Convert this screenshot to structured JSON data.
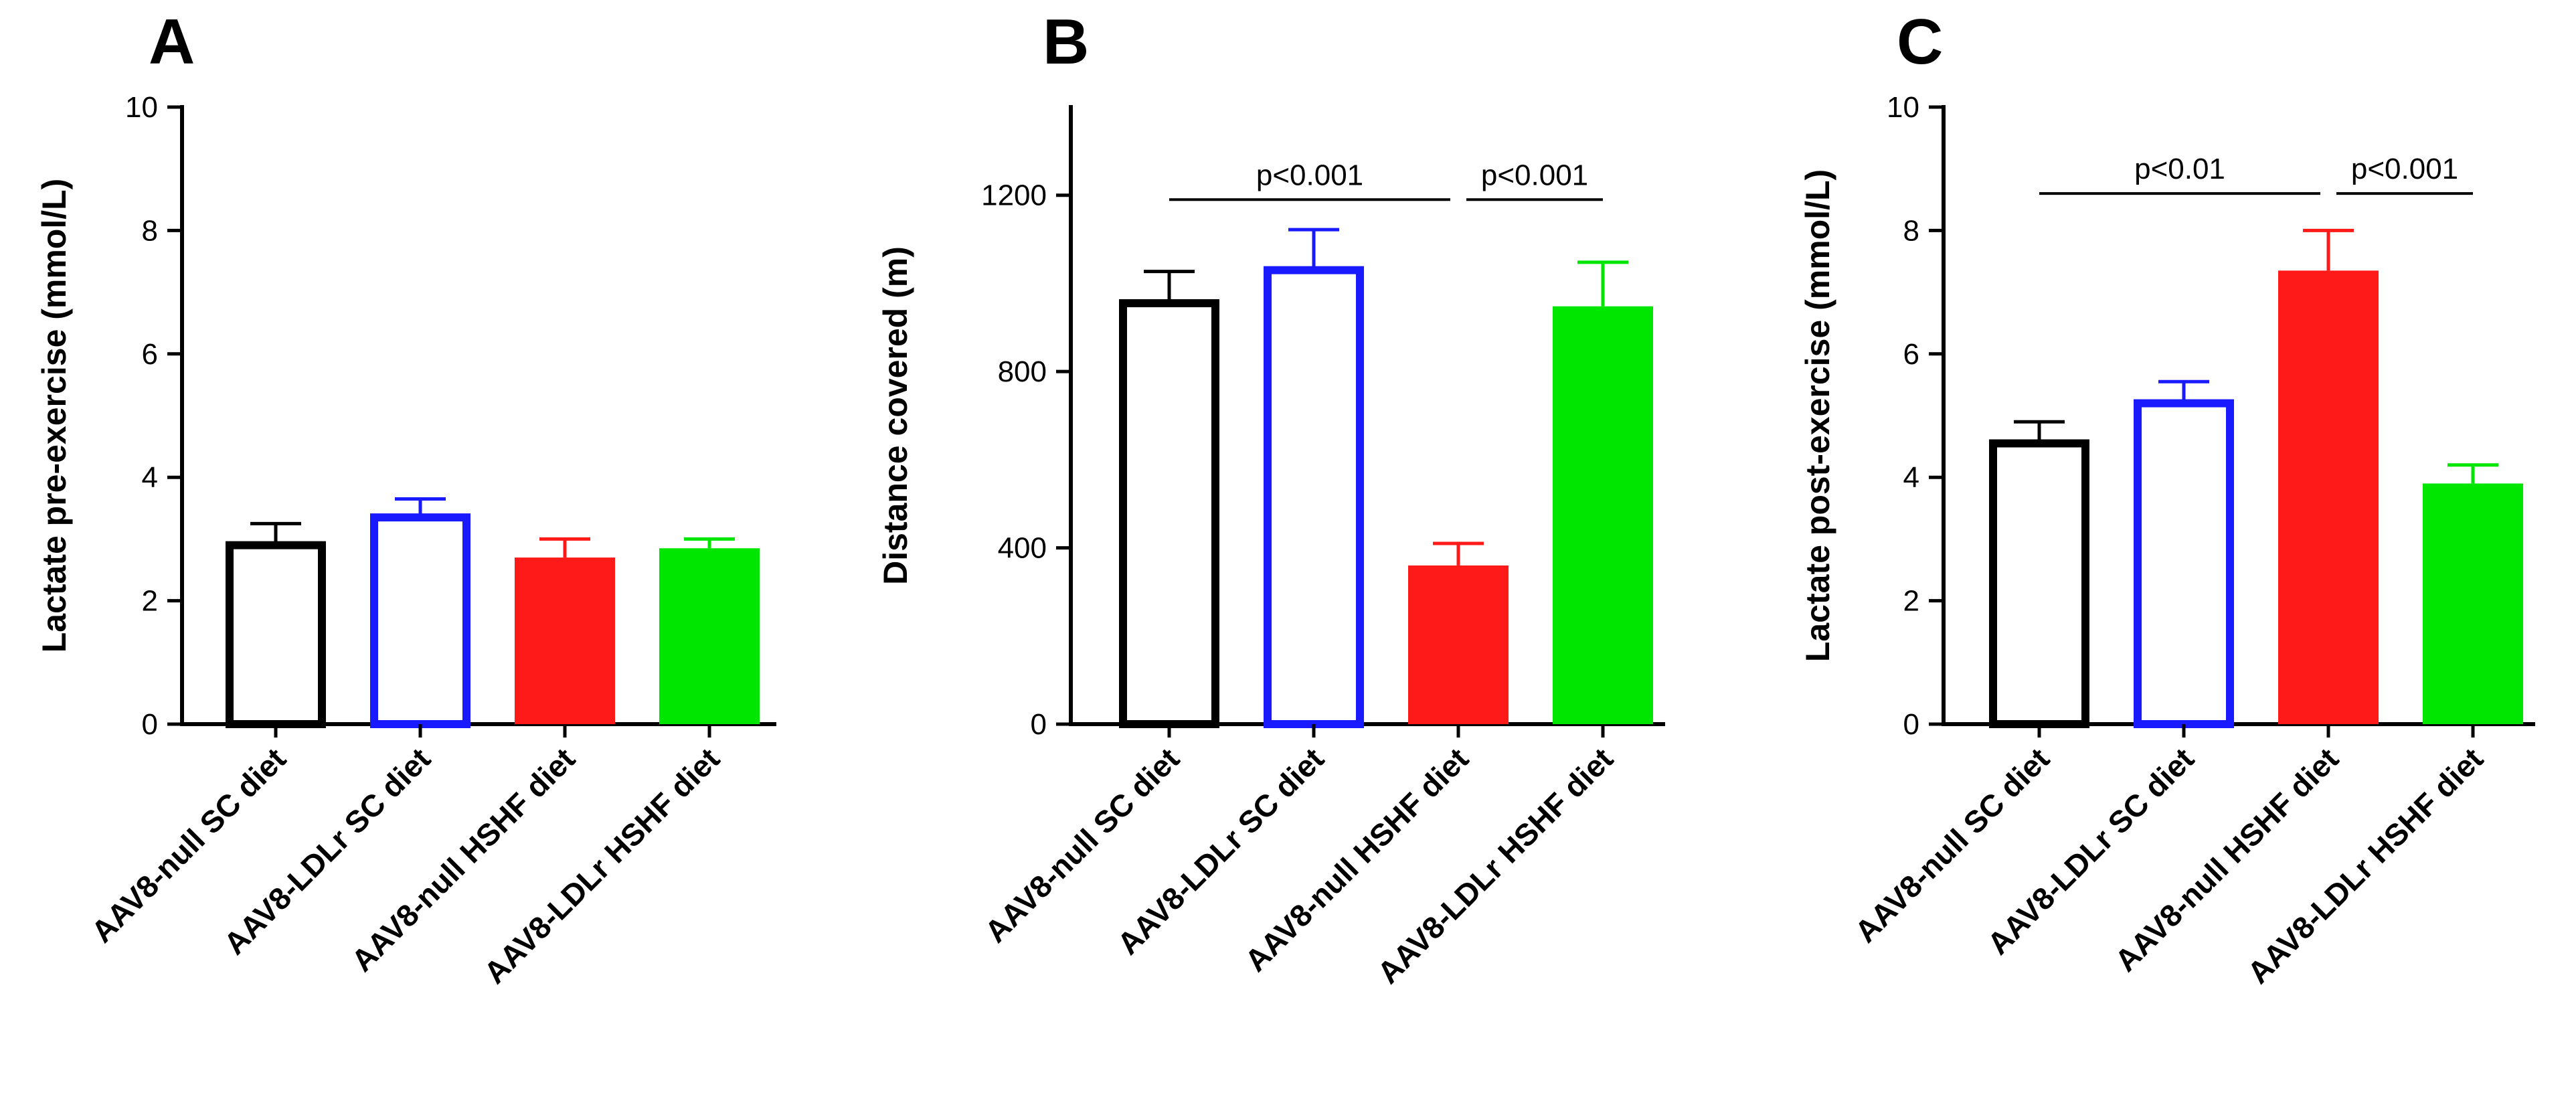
{
  "figure": {
    "panels": [
      "A",
      "B",
      "C"
    ]
  },
  "chart_data": [
    {
      "type": "bar",
      "panel": "A",
      "title": "",
      "xlabel": "",
      "ylabel": "Lactate pre-exercise (mmol/L)",
      "ylim": [
        0,
        10
      ],
      "yticks": [
        0,
        2,
        4,
        6,
        8,
        10
      ],
      "grid": false,
      "categories": [
        "AAV8-null SC diet",
        "AAV8-LDLr SC diet",
        "AAV8-null HSHF diet",
        "AAV8-LDLr HSHF diet"
      ],
      "values": [
        2.9,
        3.35,
        2.7,
        2.85
      ],
      "errors": [
        0.35,
        0.3,
        0.3,
        0.15
      ],
      "styles": [
        "open",
        "open",
        "filled",
        "filled"
      ],
      "colors": [
        "#000000",
        "#1a1aff",
        "#ff1a1a",
        "#00e600"
      ],
      "significance": []
    },
    {
      "type": "bar",
      "panel": "B",
      "title": "",
      "xlabel": "",
      "ylabel": "Distance covered (m)",
      "ylim": [
        0,
        1400
      ],
      "yticks": [
        0,
        400,
        800,
        1200
      ],
      "grid": false,
      "categories": [
        "AAV8-null SC diet",
        "AAV8-LDLr SC diet",
        "AAV8-null HSHF diet",
        "AAV8-LDLr HSHF diet"
      ],
      "values": [
        955,
        1030,
        360,
        948
      ],
      "errors": [
        72,
        92,
        50,
        100
      ],
      "styles": [
        "open",
        "open",
        "filled",
        "filled"
      ],
      "colors": [
        "#000000",
        "#1a1aff",
        "#ff1a1a",
        "#00e600"
      ],
      "significance": [
        {
          "from": 0,
          "to": 2,
          "label": "p<0.001",
          "y": 1190
        },
        {
          "from": 2,
          "to": 3,
          "label": "p<0.001",
          "y": 1190
        }
      ]
    },
    {
      "type": "bar",
      "panel": "C",
      "title": "",
      "xlabel": "",
      "ylabel": "Lactate post-exercise (mmol/L)",
      "ylim": [
        0,
        10
      ],
      "yticks": [
        0,
        2,
        4,
        6,
        8,
        10
      ],
      "grid": false,
      "categories": [
        "AAV8-null SC diet",
        "AAV8-LDLr SC diet",
        "AAV8-null HSHF diet",
        "AAV8-LDLr HSHF diet"
      ],
      "values": [
        4.55,
        5.2,
        7.35,
        3.9
      ],
      "errors": [
        0.35,
        0.35,
        0.65,
        0.3
      ],
      "styles": [
        "open",
        "open",
        "filled",
        "filled"
      ],
      "colors": [
        "#000000",
        "#1a1aff",
        "#ff1a1a",
        "#00e600"
      ],
      "significance": [
        {
          "from": 0,
          "to": 2,
          "label": "p<0.01",
          "y": 8.6
        },
        {
          "from": 2,
          "to": 3,
          "label": "p<0.001",
          "y": 8.6
        }
      ]
    }
  ]
}
